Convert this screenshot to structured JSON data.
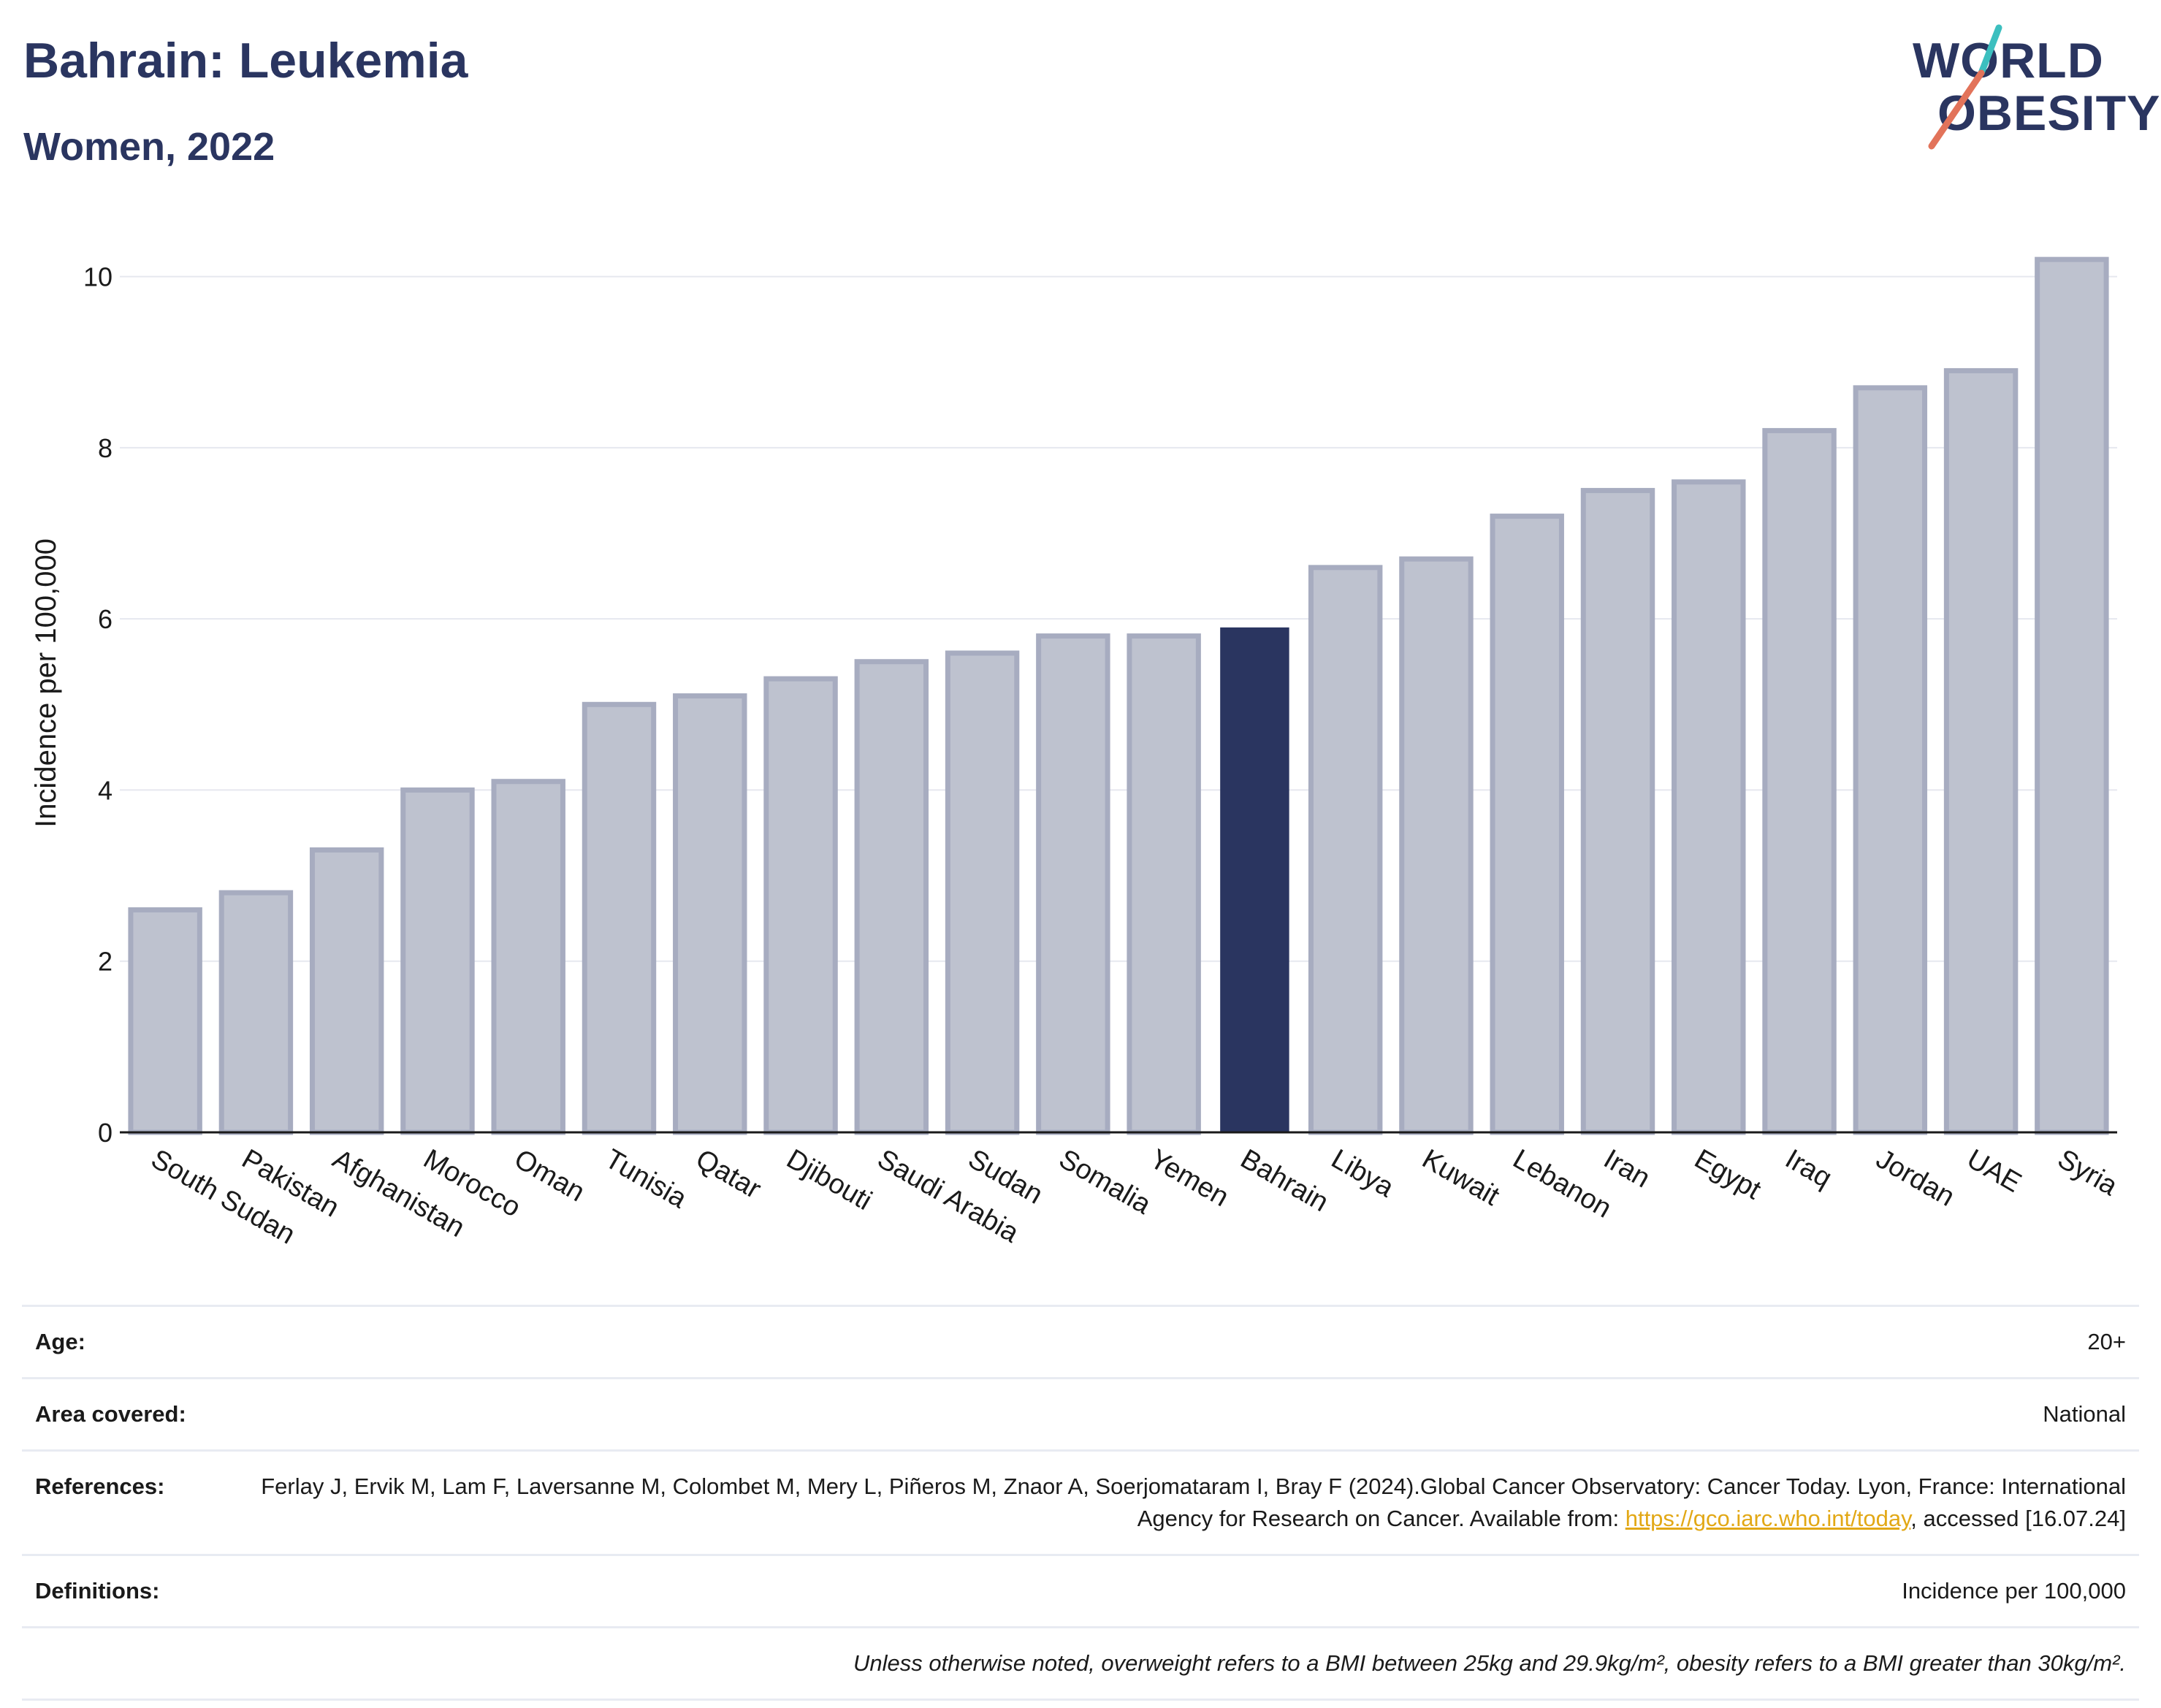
{
  "header": {
    "title": "Bahrain: Leukemia",
    "subtitle": "Women, 2022"
  },
  "logo": {
    "line1": "WORLD",
    "line2": "OBESITY",
    "slash_colors": [
      "#3cbfbf",
      "#e2735a"
    ]
  },
  "colors": {
    "highlight": "#2a3560",
    "bar_fill": "#bec2cf",
    "bar_stroke": "#a7acc0",
    "grid": "#e6e8ef",
    "text_dark": "#2a3560",
    "link": "#e2a816"
  },
  "chart_data": {
    "type": "bar",
    "ylabel": "Incidence per 100,000",
    "ylim": [
      0,
      10.5
    ],
    "yticks": [
      0,
      2,
      4,
      6,
      8,
      10
    ],
    "grid": true,
    "highlight": "Bahrain",
    "categories": [
      "South Sudan",
      "Pakistan",
      "Afghanistan",
      "Morocco",
      "Oman",
      "Tunisia",
      "Qatar",
      "Djibouti",
      "Saudi Arabia",
      "Sudan",
      "Somalia",
      "Yemen",
      "Bahrain",
      "Libya",
      "Kuwait",
      "Lebanon",
      "Iran",
      "Egypt",
      "Iraq",
      "Jordan",
      "UAE",
      "Syria"
    ],
    "values": [
      2.6,
      2.8,
      3.3,
      4.0,
      4.1,
      5.0,
      5.1,
      5.3,
      5.5,
      5.6,
      5.8,
      5.8,
      5.9,
      6.6,
      6.7,
      7.2,
      7.5,
      7.6,
      8.2,
      8.7,
      8.9,
      10.2
    ]
  },
  "meta": {
    "age_label": "Age:",
    "age_value": "20+",
    "area_label": "Area covered:",
    "area_value": "National",
    "references_label": "References:",
    "references_text": "Ferlay J, Ervik M, Lam F, Laversanne M, Colombet M, Mery L, Piñeros M, Znaor A, Soerjomataram I, Bray F (2024).Global Cancer Observatory: Cancer Today. Lyon, France: International Agency for Research on Cancer. Available from: ",
    "references_link": "https://gco.iarc.who.int/today",
    "references_tail": ", accessed [16.07.24]",
    "definitions_label": "Definitions:",
    "definitions_value": "Incidence per 100,000",
    "note": "Unless otherwise noted, overweight refers to a BMI between 25kg and 29.9kg/m², obesity refers to a BMI greater than 30kg/m²."
  }
}
